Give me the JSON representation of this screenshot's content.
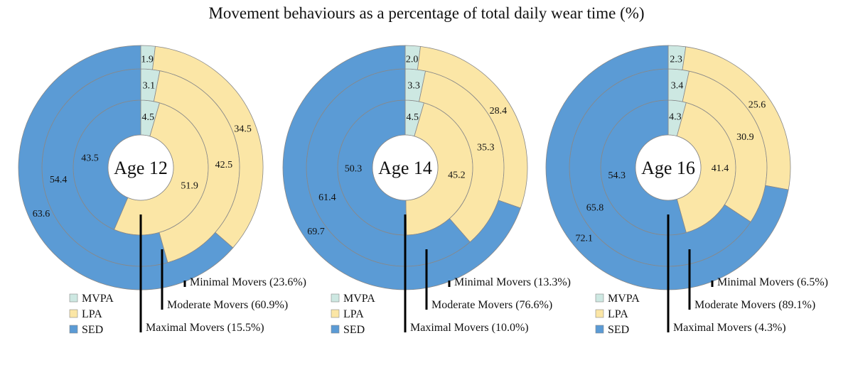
{
  "chart_data": {
    "type": "pie",
    "title": "Movement behaviours as a percentage of total daily wear time (%)",
    "legend": [
      {
        "name": "MVPA",
        "color": "#cde8e2"
      },
      {
        "name": "LPA",
        "color": "#fbe6a6"
      },
      {
        "name": "SED",
        "color": "#5b9bd5"
      }
    ],
    "rings_order": [
      "Maximal Movers (inner)",
      "Moderate Movers (middle)",
      "Minimal Movers (outer)"
    ],
    "panels": [
      {
        "label": "Age 12",
        "rings": [
          {
            "group": "Maximal Movers (15.5%)",
            "values": [
              4.5,
              51.9,
              43.5
            ]
          },
          {
            "group": "Moderate Movers (60.9%)",
            "values": [
              3.1,
              42.5,
              54.4
            ]
          },
          {
            "group": "Minimal Movers (23.6%)",
            "values": [
              1.9,
              34.5,
              63.6
            ]
          }
        ]
      },
      {
        "label": "Age 14",
        "rings": [
          {
            "group": "Maximal Movers (10.0%)",
            "values": [
              4.5,
              45.2,
              50.3
            ]
          },
          {
            "group": "Moderate Movers (76.6%)",
            "values": [
              3.3,
              35.3,
              61.4
            ]
          },
          {
            "group": "Minimal Movers (13.3%)",
            "values": [
              2.0,
              28.4,
              69.7
            ]
          }
        ]
      },
      {
        "label": "Age 16",
        "rings": [
          {
            "group": "Maximal Movers (4.3%)",
            "values": [
              4.3,
              41.4,
              54.3
            ]
          },
          {
            "group": "Moderate Movers (89.1%)",
            "values": [
              3.4,
              30.9,
              65.8
            ]
          },
          {
            "group": "Minimal Movers (6.5%)",
            "values": [
              2.3,
              25.6,
              72.1
            ]
          }
        ]
      }
    ]
  }
}
